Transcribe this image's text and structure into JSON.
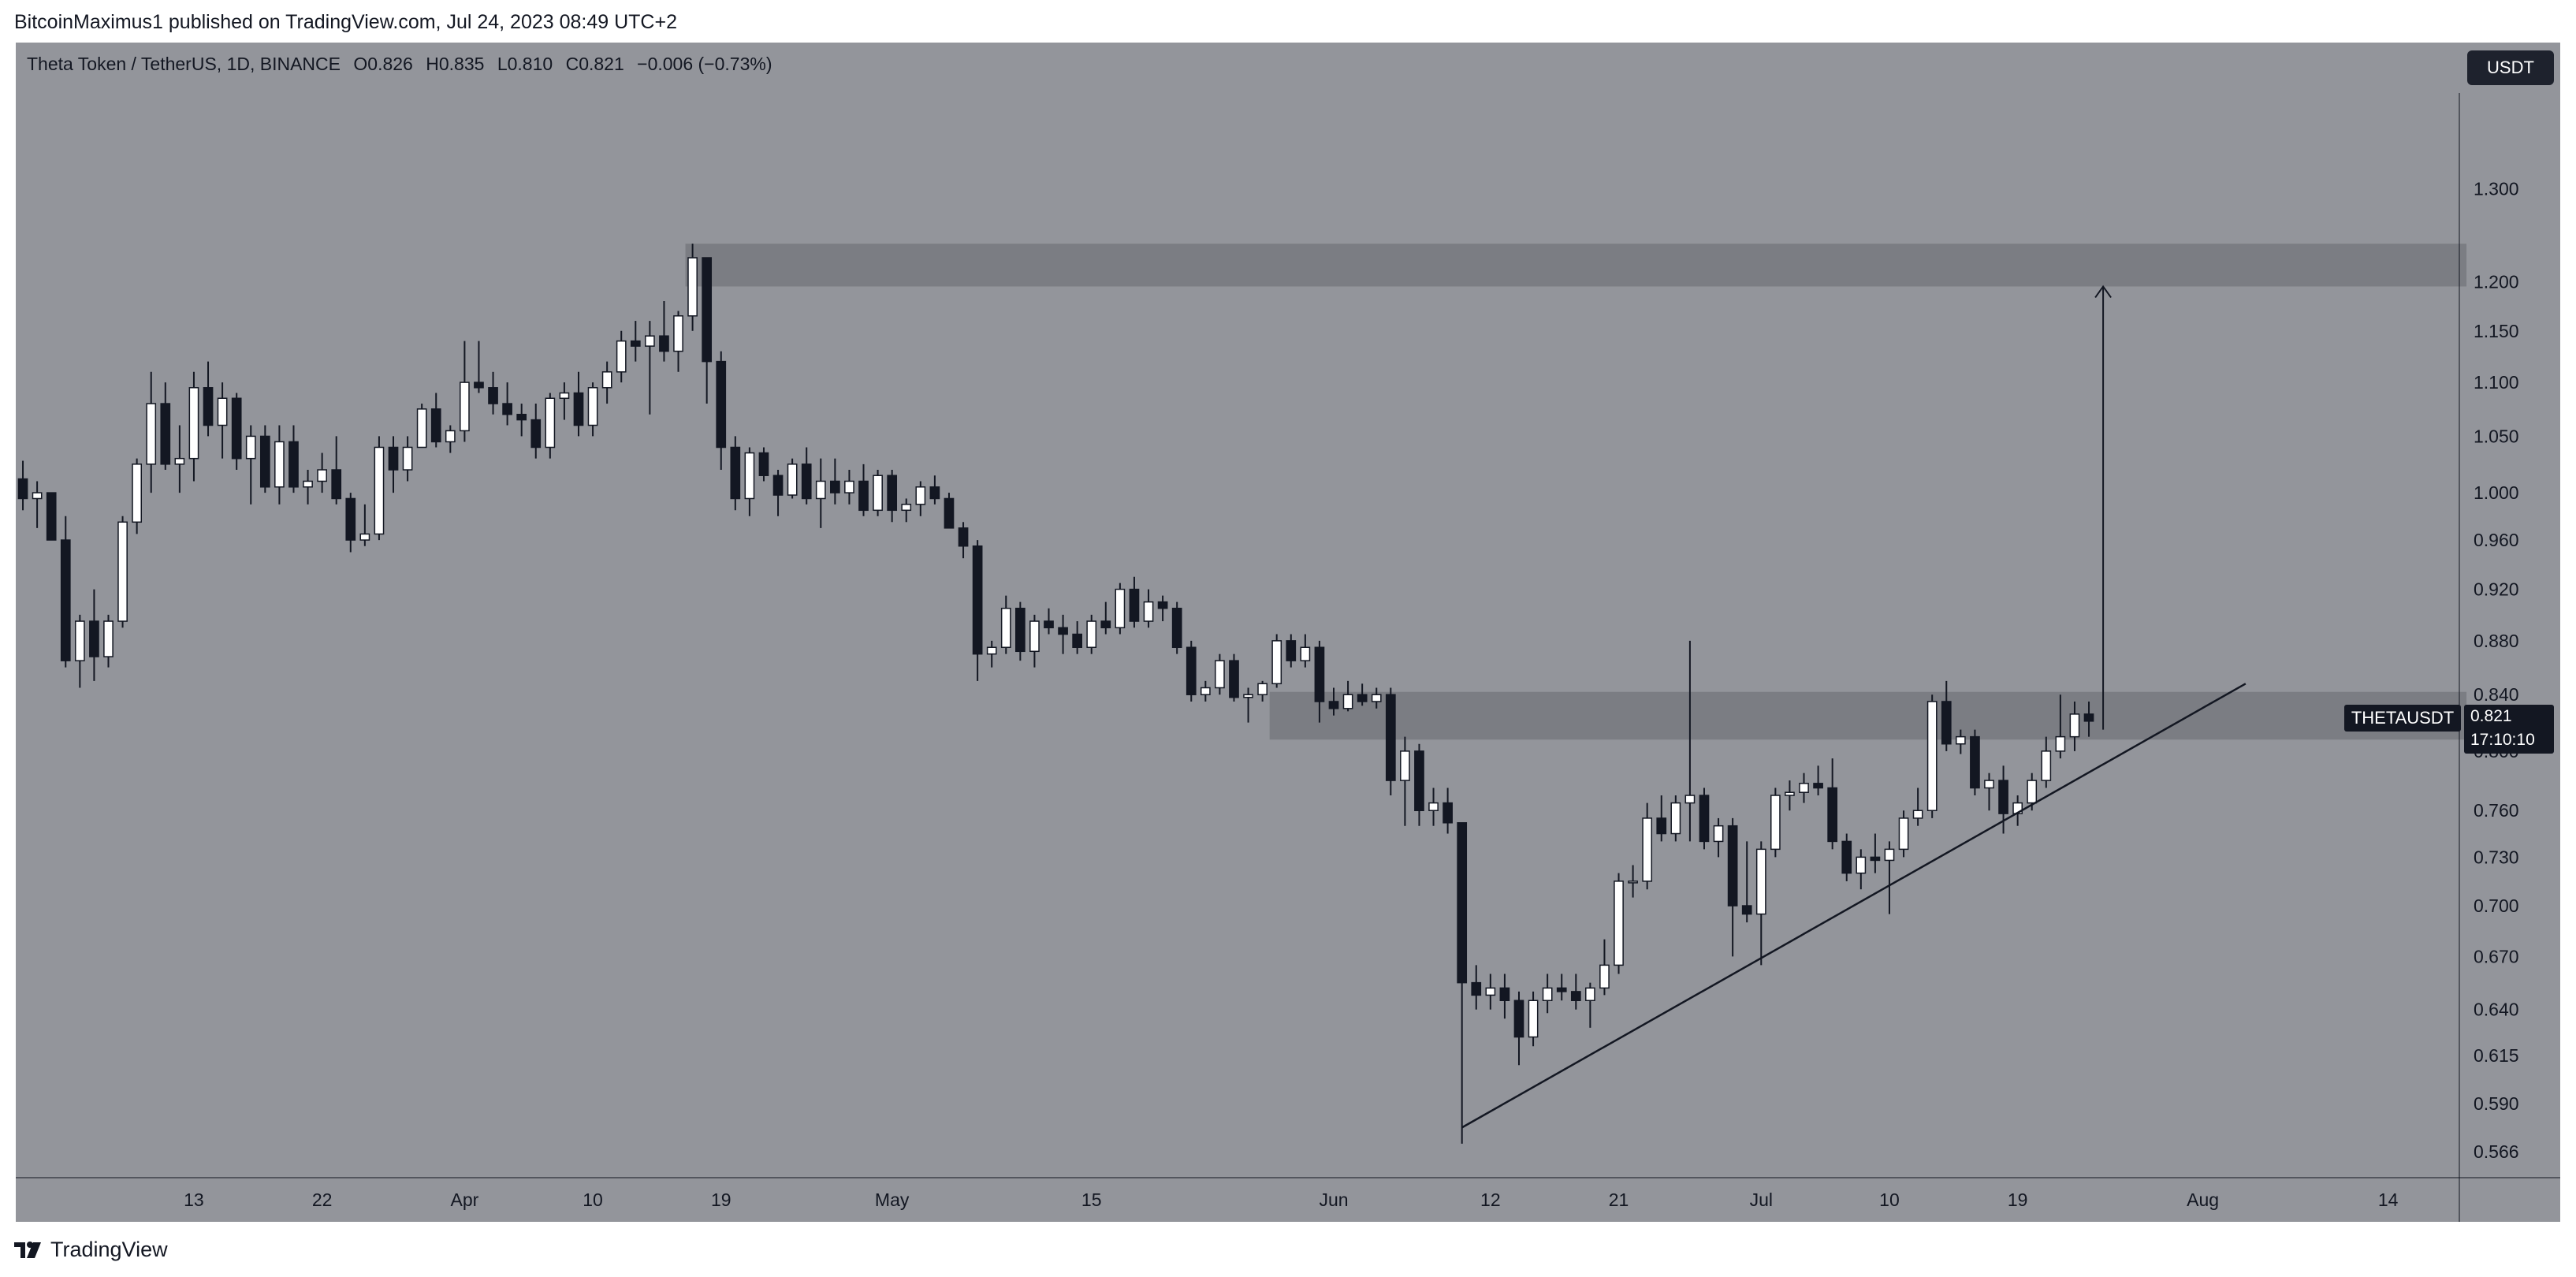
{
  "header": {
    "attribution": "BitcoinMaximus1 published on TradingView.com, Jul 24, 2023 08:49 UTC+2"
  },
  "legend": {
    "symbol": "Theta Token / TetherUS, 1D, BINANCE",
    "o_label": "O",
    "o": "0.826",
    "h_label": "H",
    "h": "0.835",
    "l_label": "L",
    "l": "0.810",
    "c_label": "C",
    "c": "0.821",
    "change": "−0.006 (−0.73%)"
  },
  "currency_badge": "USDT",
  "ticker_badge": "THETAUSDT",
  "last_price": "0.821",
  "countdown": "17:10:10",
  "footer": {
    "brand": "TradingView"
  },
  "colors": {
    "background": "#93959b",
    "up_body": "#ffffff",
    "down_body": "#131722",
    "wick": "#131722",
    "zone": "#7b7d83",
    "trendline": "#131722"
  },
  "chart_data": {
    "type": "candlestick",
    "title": "Theta Token / TetherUS, 1D, BINANCE",
    "y_scale": "log",
    "ylim": [
      0.555,
      1.42
    ],
    "y_ticks": [
      "1.300",
      "1.200",
      "1.150",
      "1.100",
      "1.050",
      "1.000",
      "0.960",
      "0.920",
      "0.880",
      "0.840",
      "0.800",
      "0.760",
      "0.730",
      "0.700",
      "0.670",
      "0.640",
      "0.615",
      "0.590",
      "0.566"
    ],
    "x_ticks": [
      "13",
      "22",
      "Apr",
      "10",
      "19",
      "May",
      "15",
      "Jun",
      "12",
      "21",
      "Jul",
      "10",
      "19",
      "Aug",
      "14"
    ],
    "x_tick_dates": [
      "2023-03-13",
      "2023-03-22",
      "2023-04-01",
      "2023-04-10",
      "2023-04-19",
      "2023-05-01",
      "2023-05-15",
      "2023-06-01",
      "2023-06-12",
      "2023-06-21",
      "2023-07-01",
      "2023-07-10",
      "2023-07-19",
      "2023-08-01",
      "2023-08-14"
    ],
    "x_range": [
      "2023-03-01",
      "2023-08-19"
    ],
    "grid": false,
    "candles": [
      {
        "d": "2023-03-01",
        "o": 1.012,
        "h": 1.028,
        "l": 0.985,
        "c": 0.995
      },
      {
        "d": "2023-03-02",
        "o": 0.995,
        "h": 1.01,
        "l": 0.97,
        "c": 1.0
      },
      {
        "d": "2023-03-03",
        "o": 1.0,
        "h": 1.0,
        "l": 0.96,
        "c": 0.96
      },
      {
        "d": "2023-03-04",
        "o": 0.96,
        "h": 0.98,
        "l": 0.86,
        "c": 0.865
      },
      {
        "d": "2023-03-05",
        "o": 0.865,
        "h": 0.9,
        "l": 0.845,
        "c": 0.895
      },
      {
        "d": "2023-03-06",
        "o": 0.895,
        "h": 0.92,
        "l": 0.85,
        "c": 0.868
      },
      {
        "d": "2023-03-07",
        "o": 0.868,
        "h": 0.9,
        "l": 0.86,
        "c": 0.895
      },
      {
        "d": "2023-03-08",
        "o": 0.895,
        "h": 0.98,
        "l": 0.89,
        "c": 0.975
      },
      {
        "d": "2023-03-09",
        "o": 0.975,
        "h": 1.03,
        "l": 0.965,
        "c": 1.025
      },
      {
        "d": "2023-03-10",
        "o": 1.025,
        "h": 1.11,
        "l": 1.0,
        "c": 1.08
      },
      {
        "d": "2023-03-11",
        "o": 1.08,
        "h": 1.1,
        "l": 1.02,
        "c": 1.025
      },
      {
        "d": "2023-03-12",
        "o": 1.025,
        "h": 1.06,
        "l": 1.0,
        "c": 1.03
      },
      {
        "d": "2023-03-13",
        "o": 1.03,
        "h": 1.11,
        "l": 1.01,
        "c": 1.095
      },
      {
        "d": "2023-03-14",
        "o": 1.095,
        "h": 1.12,
        "l": 1.05,
        "c": 1.06
      },
      {
        "d": "2023-03-15",
        "o": 1.06,
        "h": 1.1,
        "l": 1.03,
        "c": 1.085
      },
      {
        "d": "2023-03-16",
        "o": 1.085,
        "h": 1.09,
        "l": 1.02,
        "c": 1.03
      },
      {
        "d": "2023-03-17",
        "o": 1.03,
        "h": 1.06,
        "l": 0.99,
        "c": 1.05
      },
      {
        "d": "2023-03-18",
        "o": 1.05,
        "h": 1.06,
        "l": 1.0,
        "c": 1.005
      },
      {
        "d": "2023-03-19",
        "o": 1.005,
        "h": 1.06,
        "l": 0.99,
        "c": 1.045
      },
      {
        "d": "2023-03-20",
        "o": 1.045,
        "h": 1.06,
        "l": 1.0,
        "c": 1.005
      },
      {
        "d": "2023-03-21",
        "o": 1.005,
        "h": 1.02,
        "l": 0.99,
        "c": 1.01
      },
      {
        "d": "2023-03-22",
        "o": 1.01,
        "h": 1.035,
        "l": 1.0,
        "c": 1.02
      },
      {
        "d": "2023-03-23",
        "o": 1.02,
        "h": 1.05,
        "l": 0.99,
        "c": 0.995
      },
      {
        "d": "2023-03-24",
        "o": 0.995,
        "h": 1.0,
        "l": 0.95,
        "c": 0.96
      },
      {
        "d": "2023-03-25",
        "o": 0.96,
        "h": 0.99,
        "l": 0.955,
        "c": 0.965
      },
      {
        "d": "2023-03-26",
        "o": 0.965,
        "h": 1.05,
        "l": 0.96,
        "c": 1.04
      },
      {
        "d": "2023-03-27",
        "o": 1.04,
        "h": 1.05,
        "l": 1.0,
        "c": 1.02
      },
      {
        "d": "2023-03-28",
        "o": 1.02,
        "h": 1.05,
        "l": 1.01,
        "c": 1.04
      },
      {
        "d": "2023-03-29",
        "o": 1.04,
        "h": 1.08,
        "l": 1.04,
        "c": 1.075
      },
      {
        "d": "2023-03-30",
        "o": 1.075,
        "h": 1.09,
        "l": 1.04,
        "c": 1.045
      },
      {
        "d": "2023-03-31",
        "o": 1.045,
        "h": 1.06,
        "l": 1.035,
        "c": 1.055
      },
      {
        "d": "2023-04-01",
        "o": 1.055,
        "h": 1.14,
        "l": 1.045,
        "c": 1.1
      },
      {
        "d": "2023-04-02",
        "o": 1.1,
        "h": 1.14,
        "l": 1.09,
        "c": 1.095
      },
      {
        "d": "2023-04-03",
        "o": 1.095,
        "h": 1.11,
        "l": 1.07,
        "c": 1.08
      },
      {
        "d": "2023-04-04",
        "o": 1.08,
        "h": 1.1,
        "l": 1.06,
        "c": 1.07
      },
      {
        "d": "2023-04-05",
        "o": 1.07,
        "h": 1.08,
        "l": 1.05,
        "c": 1.065
      },
      {
        "d": "2023-04-06",
        "o": 1.065,
        "h": 1.08,
        "l": 1.03,
        "c": 1.04
      },
      {
        "d": "2023-04-07",
        "o": 1.04,
        "h": 1.09,
        "l": 1.03,
        "c": 1.085
      },
      {
        "d": "2023-04-08",
        "o": 1.085,
        "h": 1.1,
        "l": 1.065,
        "c": 1.09
      },
      {
        "d": "2023-04-09",
        "o": 1.09,
        "h": 1.11,
        "l": 1.05,
        "c": 1.06
      },
      {
        "d": "2023-04-10",
        "o": 1.06,
        "h": 1.1,
        "l": 1.05,
        "c": 1.095
      },
      {
        "d": "2023-04-11",
        "o": 1.095,
        "h": 1.12,
        "l": 1.08,
        "c": 1.11
      },
      {
        "d": "2023-04-12",
        "o": 1.11,
        "h": 1.15,
        "l": 1.1,
        "c": 1.14
      },
      {
        "d": "2023-04-13",
        "o": 1.14,
        "h": 1.16,
        "l": 1.12,
        "c": 1.135
      },
      {
        "d": "2023-04-14",
        "o": 1.135,
        "h": 1.16,
        "l": 1.07,
        "c": 1.145
      },
      {
        "d": "2023-04-15",
        "o": 1.145,
        "h": 1.18,
        "l": 1.12,
        "c": 1.13
      },
      {
        "d": "2023-04-16",
        "o": 1.13,
        "h": 1.17,
        "l": 1.11,
        "c": 1.165
      },
      {
        "d": "2023-04-17",
        "o": 1.165,
        "h": 1.24,
        "l": 1.15,
        "c": 1.225
      },
      {
        "d": "2023-04-18",
        "o": 1.225,
        "h": 1.225,
        "l": 1.08,
        "c": 1.12
      },
      {
        "d": "2023-04-19",
        "o": 1.12,
        "h": 1.13,
        "l": 1.02,
        "c": 1.04
      },
      {
        "d": "2023-04-20",
        "o": 1.04,
        "h": 1.05,
        "l": 0.985,
        "c": 0.995
      },
      {
        "d": "2023-04-21",
        "o": 0.995,
        "h": 1.04,
        "l": 0.98,
        "c": 1.035
      },
      {
        "d": "2023-04-22",
        "o": 1.035,
        "h": 1.04,
        "l": 1.01,
        "c": 1.015
      },
      {
        "d": "2023-04-23",
        "o": 1.015,
        "h": 1.02,
        "l": 0.98,
        "c": 0.998
      },
      {
        "d": "2023-04-24",
        "o": 0.998,
        "h": 1.03,
        "l": 0.995,
        "c": 1.025
      },
      {
        "d": "2023-04-25",
        "o": 1.025,
        "h": 1.04,
        "l": 0.99,
        "c": 0.995
      },
      {
        "d": "2023-04-26",
        "o": 0.995,
        "h": 1.03,
        "l": 0.97,
        "c": 1.01
      },
      {
        "d": "2023-04-27",
        "o": 1.01,
        "h": 1.03,
        "l": 0.99,
        "c": 1.0
      },
      {
        "d": "2023-04-28",
        "o": 1.0,
        "h": 1.02,
        "l": 0.99,
        "c": 1.01
      },
      {
        "d": "2023-04-29",
        "o": 1.01,
        "h": 1.025,
        "l": 0.98,
        "c": 0.985
      },
      {
        "d": "2023-04-30",
        "o": 0.985,
        "h": 1.02,
        "l": 0.98,
        "c": 1.015
      },
      {
        "d": "2023-05-01",
        "o": 1.015,
        "h": 1.02,
        "l": 0.975,
        "c": 0.985
      },
      {
        "d": "2023-05-02",
        "o": 0.985,
        "h": 0.995,
        "l": 0.975,
        "c": 0.99
      },
      {
        "d": "2023-05-03",
        "o": 0.99,
        "h": 1.01,
        "l": 0.98,
        "c": 1.005
      },
      {
        "d": "2023-05-04",
        "o": 1.005,
        "h": 1.015,
        "l": 0.99,
        "c": 0.995
      },
      {
        "d": "2023-05-05",
        "o": 0.995,
        "h": 1.0,
        "l": 0.97,
        "c": 0.97
      },
      {
        "d": "2023-05-06",
        "o": 0.97,
        "h": 0.975,
        "l": 0.945,
        "c": 0.955
      },
      {
        "d": "2023-05-07",
        "o": 0.955,
        "h": 0.96,
        "l": 0.85,
        "c": 0.87
      },
      {
        "d": "2023-05-08",
        "o": 0.87,
        "h": 0.88,
        "l": 0.86,
        "c": 0.875
      },
      {
        "d": "2023-05-09",
        "o": 0.875,
        "h": 0.915,
        "l": 0.87,
        "c": 0.905
      },
      {
        "d": "2023-05-10",
        "o": 0.905,
        "h": 0.91,
        "l": 0.865,
        "c": 0.872
      },
      {
        "d": "2023-05-11",
        "o": 0.872,
        "h": 0.9,
        "l": 0.86,
        "c": 0.895
      },
      {
        "d": "2023-05-12",
        "o": 0.895,
        "h": 0.905,
        "l": 0.885,
        "c": 0.89
      },
      {
        "d": "2023-05-13",
        "o": 0.89,
        "h": 0.9,
        "l": 0.87,
        "c": 0.885
      },
      {
        "d": "2023-05-14",
        "o": 0.885,
        "h": 0.895,
        "l": 0.87,
        "c": 0.875
      },
      {
        "d": "2023-05-15",
        "o": 0.875,
        "h": 0.9,
        "l": 0.87,
        "c": 0.895
      },
      {
        "d": "2023-05-16",
        "o": 0.895,
        "h": 0.91,
        "l": 0.885,
        "c": 0.89
      },
      {
        "d": "2023-05-17",
        "o": 0.89,
        "h": 0.925,
        "l": 0.885,
        "c": 0.92
      },
      {
        "d": "2023-05-18",
        "o": 0.92,
        "h": 0.93,
        "l": 0.89,
        "c": 0.895
      },
      {
        "d": "2023-05-19",
        "o": 0.895,
        "h": 0.92,
        "l": 0.89,
        "c": 0.91
      },
      {
        "d": "2023-05-20",
        "o": 0.91,
        "h": 0.915,
        "l": 0.895,
        "c": 0.905
      },
      {
        "d": "2023-05-21",
        "o": 0.905,
        "h": 0.91,
        "l": 0.87,
        "c": 0.875
      },
      {
        "d": "2023-05-22",
        "o": 0.875,
        "h": 0.88,
        "l": 0.835,
        "c": 0.84
      },
      {
        "d": "2023-05-23",
        "o": 0.84,
        "h": 0.85,
        "l": 0.835,
        "c": 0.845
      },
      {
        "d": "2023-05-24",
        "o": 0.845,
        "h": 0.87,
        "l": 0.84,
        "c": 0.865
      },
      {
        "d": "2023-05-25",
        "o": 0.865,
        "h": 0.87,
        "l": 0.835,
        "c": 0.838
      },
      {
        "d": "2023-05-26",
        "o": 0.838,
        "h": 0.845,
        "l": 0.82,
        "c": 0.84
      },
      {
        "d": "2023-05-27",
        "o": 0.84,
        "h": 0.85,
        "l": 0.835,
        "c": 0.848
      },
      {
        "d": "2023-05-28",
        "o": 0.848,
        "h": 0.885,
        "l": 0.845,
        "c": 0.88
      },
      {
        "d": "2023-05-29",
        "o": 0.88,
        "h": 0.885,
        "l": 0.86,
        "c": 0.865
      },
      {
        "d": "2023-05-30",
        "o": 0.865,
        "h": 0.885,
        "l": 0.86,
        "c": 0.875
      },
      {
        "d": "2023-05-31",
        "o": 0.875,
        "h": 0.88,
        "l": 0.82,
        "c": 0.835
      },
      {
        "d": "2023-06-01",
        "o": 0.835,
        "h": 0.845,
        "l": 0.825,
        "c": 0.83
      },
      {
        "d": "2023-06-02",
        "o": 0.83,
        "h": 0.85,
        "l": 0.828,
        "c": 0.84
      },
      {
        "d": "2023-06-03",
        "o": 0.84,
        "h": 0.848,
        "l": 0.832,
        "c": 0.835
      },
      {
        "d": "2023-06-04",
        "o": 0.835,
        "h": 0.845,
        "l": 0.83,
        "c": 0.84
      },
      {
        "d": "2023-06-05",
        "o": 0.84,
        "h": 0.845,
        "l": 0.77,
        "c": 0.78
      },
      {
        "d": "2023-06-06",
        "o": 0.78,
        "h": 0.81,
        "l": 0.75,
        "c": 0.8
      },
      {
        "d": "2023-06-07",
        "o": 0.8,
        "h": 0.805,
        "l": 0.75,
        "c": 0.76
      },
      {
        "d": "2023-06-08",
        "o": 0.76,
        "h": 0.775,
        "l": 0.75,
        "c": 0.765
      },
      {
        "d": "2023-06-09",
        "o": 0.765,
        "h": 0.775,
        "l": 0.745,
        "c": 0.752
      },
      {
        "d": "2023-06-10",
        "o": 0.752,
        "h": 0.752,
        "l": 0.57,
        "c": 0.655
      },
      {
        "d": "2023-06-11",
        "o": 0.655,
        "h": 0.665,
        "l": 0.64,
        "c": 0.648
      },
      {
        "d": "2023-06-12",
        "o": 0.648,
        "h": 0.66,
        "l": 0.64,
        "c": 0.652
      },
      {
        "d": "2023-06-13",
        "o": 0.652,
        "h": 0.66,
        "l": 0.635,
        "c": 0.645
      },
      {
        "d": "2023-06-14",
        "o": 0.645,
        "h": 0.65,
        "l": 0.61,
        "c": 0.625
      },
      {
        "d": "2023-06-15",
        "o": 0.625,
        "h": 0.65,
        "l": 0.62,
        "c": 0.645
      },
      {
        "d": "2023-06-16",
        "o": 0.645,
        "h": 0.66,
        "l": 0.638,
        "c": 0.652
      },
      {
        "d": "2023-06-17",
        "o": 0.652,
        "h": 0.66,
        "l": 0.645,
        "c": 0.65
      },
      {
        "d": "2023-06-18",
        "o": 0.65,
        "h": 0.66,
        "l": 0.64,
        "c": 0.645
      },
      {
        "d": "2023-06-19",
        "o": 0.645,
        "h": 0.655,
        "l": 0.63,
        "c": 0.652
      },
      {
        "d": "2023-06-20",
        "o": 0.652,
        "h": 0.68,
        "l": 0.648,
        "c": 0.665
      },
      {
        "d": "2023-06-21",
        "o": 0.665,
        "h": 0.72,
        "l": 0.66,
        "c": 0.715
      },
      {
        "d": "2023-06-22",
        "o": 0.715,
        "h": 0.725,
        "l": 0.705,
        "c": 0.715
      },
      {
        "d": "2023-06-23",
        "o": 0.715,
        "h": 0.765,
        "l": 0.71,
        "c": 0.755
      },
      {
        "d": "2023-06-24",
        "o": 0.755,
        "h": 0.77,
        "l": 0.74,
        "c": 0.745
      },
      {
        "d": "2023-06-25",
        "o": 0.745,
        "h": 0.77,
        "l": 0.74,
        "c": 0.765
      },
      {
        "d": "2023-06-26",
        "o": 0.765,
        "h": 0.88,
        "l": 0.74,
        "c": 0.77
      },
      {
        "d": "2023-06-27",
        "o": 0.77,
        "h": 0.775,
        "l": 0.735,
        "c": 0.74
      },
      {
        "d": "2023-06-28",
        "o": 0.74,
        "h": 0.755,
        "l": 0.73,
        "c": 0.75
      },
      {
        "d": "2023-06-29",
        "o": 0.75,
        "h": 0.755,
        "l": 0.67,
        "c": 0.7
      },
      {
        "d": "2023-06-30",
        "o": 0.7,
        "h": 0.74,
        "l": 0.69,
        "c": 0.695
      },
      {
        "d": "2023-07-01",
        "o": 0.695,
        "h": 0.74,
        "l": 0.665,
        "c": 0.735
      },
      {
        "d": "2023-07-02",
        "o": 0.735,
        "h": 0.775,
        "l": 0.73,
        "c": 0.77
      },
      {
        "d": "2023-07-03",
        "o": 0.77,
        "h": 0.78,
        "l": 0.76,
        "c": 0.772
      },
      {
        "d": "2023-07-04",
        "o": 0.772,
        "h": 0.785,
        "l": 0.765,
        "c": 0.778
      },
      {
        "d": "2023-07-05",
        "o": 0.778,
        "h": 0.79,
        "l": 0.77,
        "c": 0.775
      },
      {
        "d": "2023-07-06",
        "o": 0.775,
        "h": 0.795,
        "l": 0.735,
        "c": 0.74
      },
      {
        "d": "2023-07-07",
        "o": 0.74,
        "h": 0.745,
        "l": 0.715,
        "c": 0.72
      },
      {
        "d": "2023-07-08",
        "o": 0.72,
        "h": 0.735,
        "l": 0.71,
        "c": 0.73
      },
      {
        "d": "2023-07-09",
        "o": 0.73,
        "h": 0.745,
        "l": 0.72,
        "c": 0.728
      },
      {
        "d": "2023-07-10",
        "o": 0.728,
        "h": 0.74,
        "l": 0.695,
        "c": 0.735
      },
      {
        "d": "2023-07-11",
        "o": 0.735,
        "h": 0.76,
        "l": 0.73,
        "c": 0.755
      },
      {
        "d": "2023-07-12",
        "o": 0.755,
        "h": 0.775,
        "l": 0.75,
        "c": 0.76
      },
      {
        "d": "2023-07-13",
        "o": 0.76,
        "h": 0.84,
        "l": 0.755,
        "c": 0.835
      },
      {
        "d": "2023-07-14",
        "o": 0.835,
        "h": 0.85,
        "l": 0.8,
        "c": 0.805
      },
      {
        "d": "2023-07-15",
        "o": 0.805,
        "h": 0.815,
        "l": 0.798,
        "c": 0.81
      },
      {
        "d": "2023-07-16",
        "o": 0.81,
        "h": 0.815,
        "l": 0.77,
        "c": 0.775
      },
      {
        "d": "2023-07-17",
        "o": 0.775,
        "h": 0.785,
        "l": 0.76,
        "c": 0.78
      },
      {
        "d": "2023-07-18",
        "o": 0.78,
        "h": 0.79,
        "l": 0.745,
        "c": 0.758
      },
      {
        "d": "2023-07-19",
        "o": 0.758,
        "h": 0.77,
        "l": 0.75,
        "c": 0.765
      },
      {
        "d": "2023-07-20",
        "o": 0.765,
        "h": 0.785,
        "l": 0.76,
        "c": 0.78
      },
      {
        "d": "2023-07-21",
        "o": 0.78,
        "h": 0.81,
        "l": 0.775,
        "c": 0.8
      },
      {
        "d": "2023-07-22",
        "o": 0.8,
        "h": 0.84,
        "l": 0.795,
        "c": 0.81
      },
      {
        "d": "2023-07-23",
        "o": 0.81,
        "h": 0.835,
        "l": 0.8,
        "c": 0.826
      },
      {
        "d": "2023-07-24",
        "o": 0.826,
        "h": 0.835,
        "l": 0.81,
        "c": 0.821
      }
    ],
    "zones": [
      {
        "from_date": "2023-04-17",
        "to_date": "2023-08-19",
        "low": 1.195,
        "high": 1.24
      },
      {
        "from_date": "2023-05-28",
        "to_date": "2023-08-19",
        "low": 0.808,
        "high": 0.842
      }
    ],
    "trendline": {
      "from": [
        "2023-06-10",
        0.578
      ],
      "to": [
        "2023-08-04",
        0.848
      ]
    },
    "arrow": {
      "date": "2023-07-24",
      "from": 0.815,
      "to": 1.195
    }
  }
}
